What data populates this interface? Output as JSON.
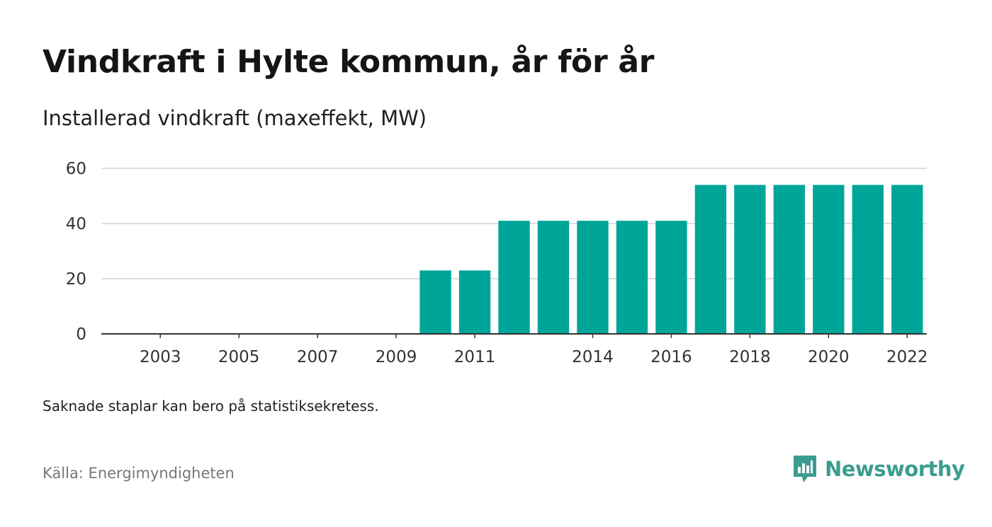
{
  "header": {
    "title": "Vindkraft i Hylte kommun, år för år",
    "subtitle": "Installerad vindkraft (maxeffekt, MW)"
  },
  "footer": {
    "note": "Saknade staplar kan bero på statistiksekretess.",
    "source": "Källa: Energimyndigheten",
    "brand": "Newsworthy"
  },
  "colors": {
    "bar": "#00a59a",
    "brand": "#3a9d90"
  },
  "chart_data": {
    "type": "bar",
    "categories": [
      "2002",
      "2003",
      "2004",
      "2005",
      "2006",
      "2007",
      "2008",
      "2009",
      "2010",
      "2011",
      "2012",
      "2013",
      "2014",
      "2015",
      "2016",
      "2017",
      "2018",
      "2019",
      "2020",
      "2021",
      "2022"
    ],
    "values": [
      0,
      0,
      0,
      0,
      0,
      0,
      0,
      0,
      23,
      23,
      41,
      41,
      41,
      41,
      41,
      54,
      54,
      54,
      54,
      54,
      54
    ],
    "x_tick_labels": [
      "2003",
      "2005",
      "2007",
      "2009",
      "2011",
      "2014",
      "2016",
      "2018",
      "2020",
      "2022"
    ],
    "y_ticks": [
      0,
      20,
      40,
      60
    ],
    "ylim": [
      0,
      60
    ],
    "grid": true,
    "title": "Vindkraft i Hylte kommun, år för år",
    "ylabel": "Installerad vindkraft (maxeffekt, MW)"
  }
}
